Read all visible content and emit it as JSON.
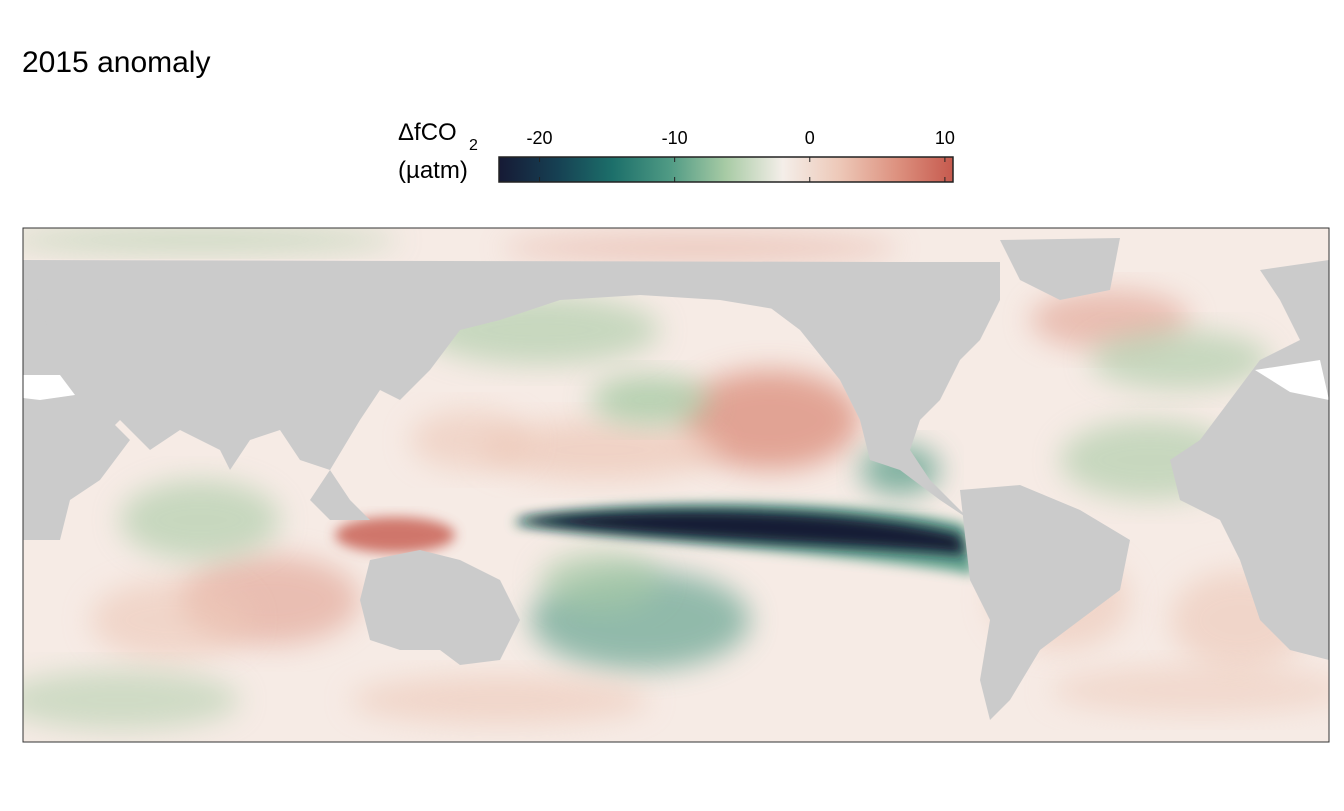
{
  "chart_data": {
    "type": "raster-map",
    "title": "2015 anomaly",
    "colorbar": {
      "label": "ΔfCO",
      "label_subscript": "2",
      "unit": "(µatm)",
      "clim": [
        -23,
        10.6
      ],
      "ticks": [
        -20,
        -10,
        0,
        10
      ],
      "colors": [
        "#161a35",
        "#163f52",
        "#1c6f6a",
        "#4f9a84",
        "#a8cba5",
        "#f4eee9",
        "#edc8b8",
        "#dd9280",
        "#c65a4e"
      ]
    },
    "land_color": "#cbcbcb",
    "ocean_base_color": "#f6ebe5"
  }
}
